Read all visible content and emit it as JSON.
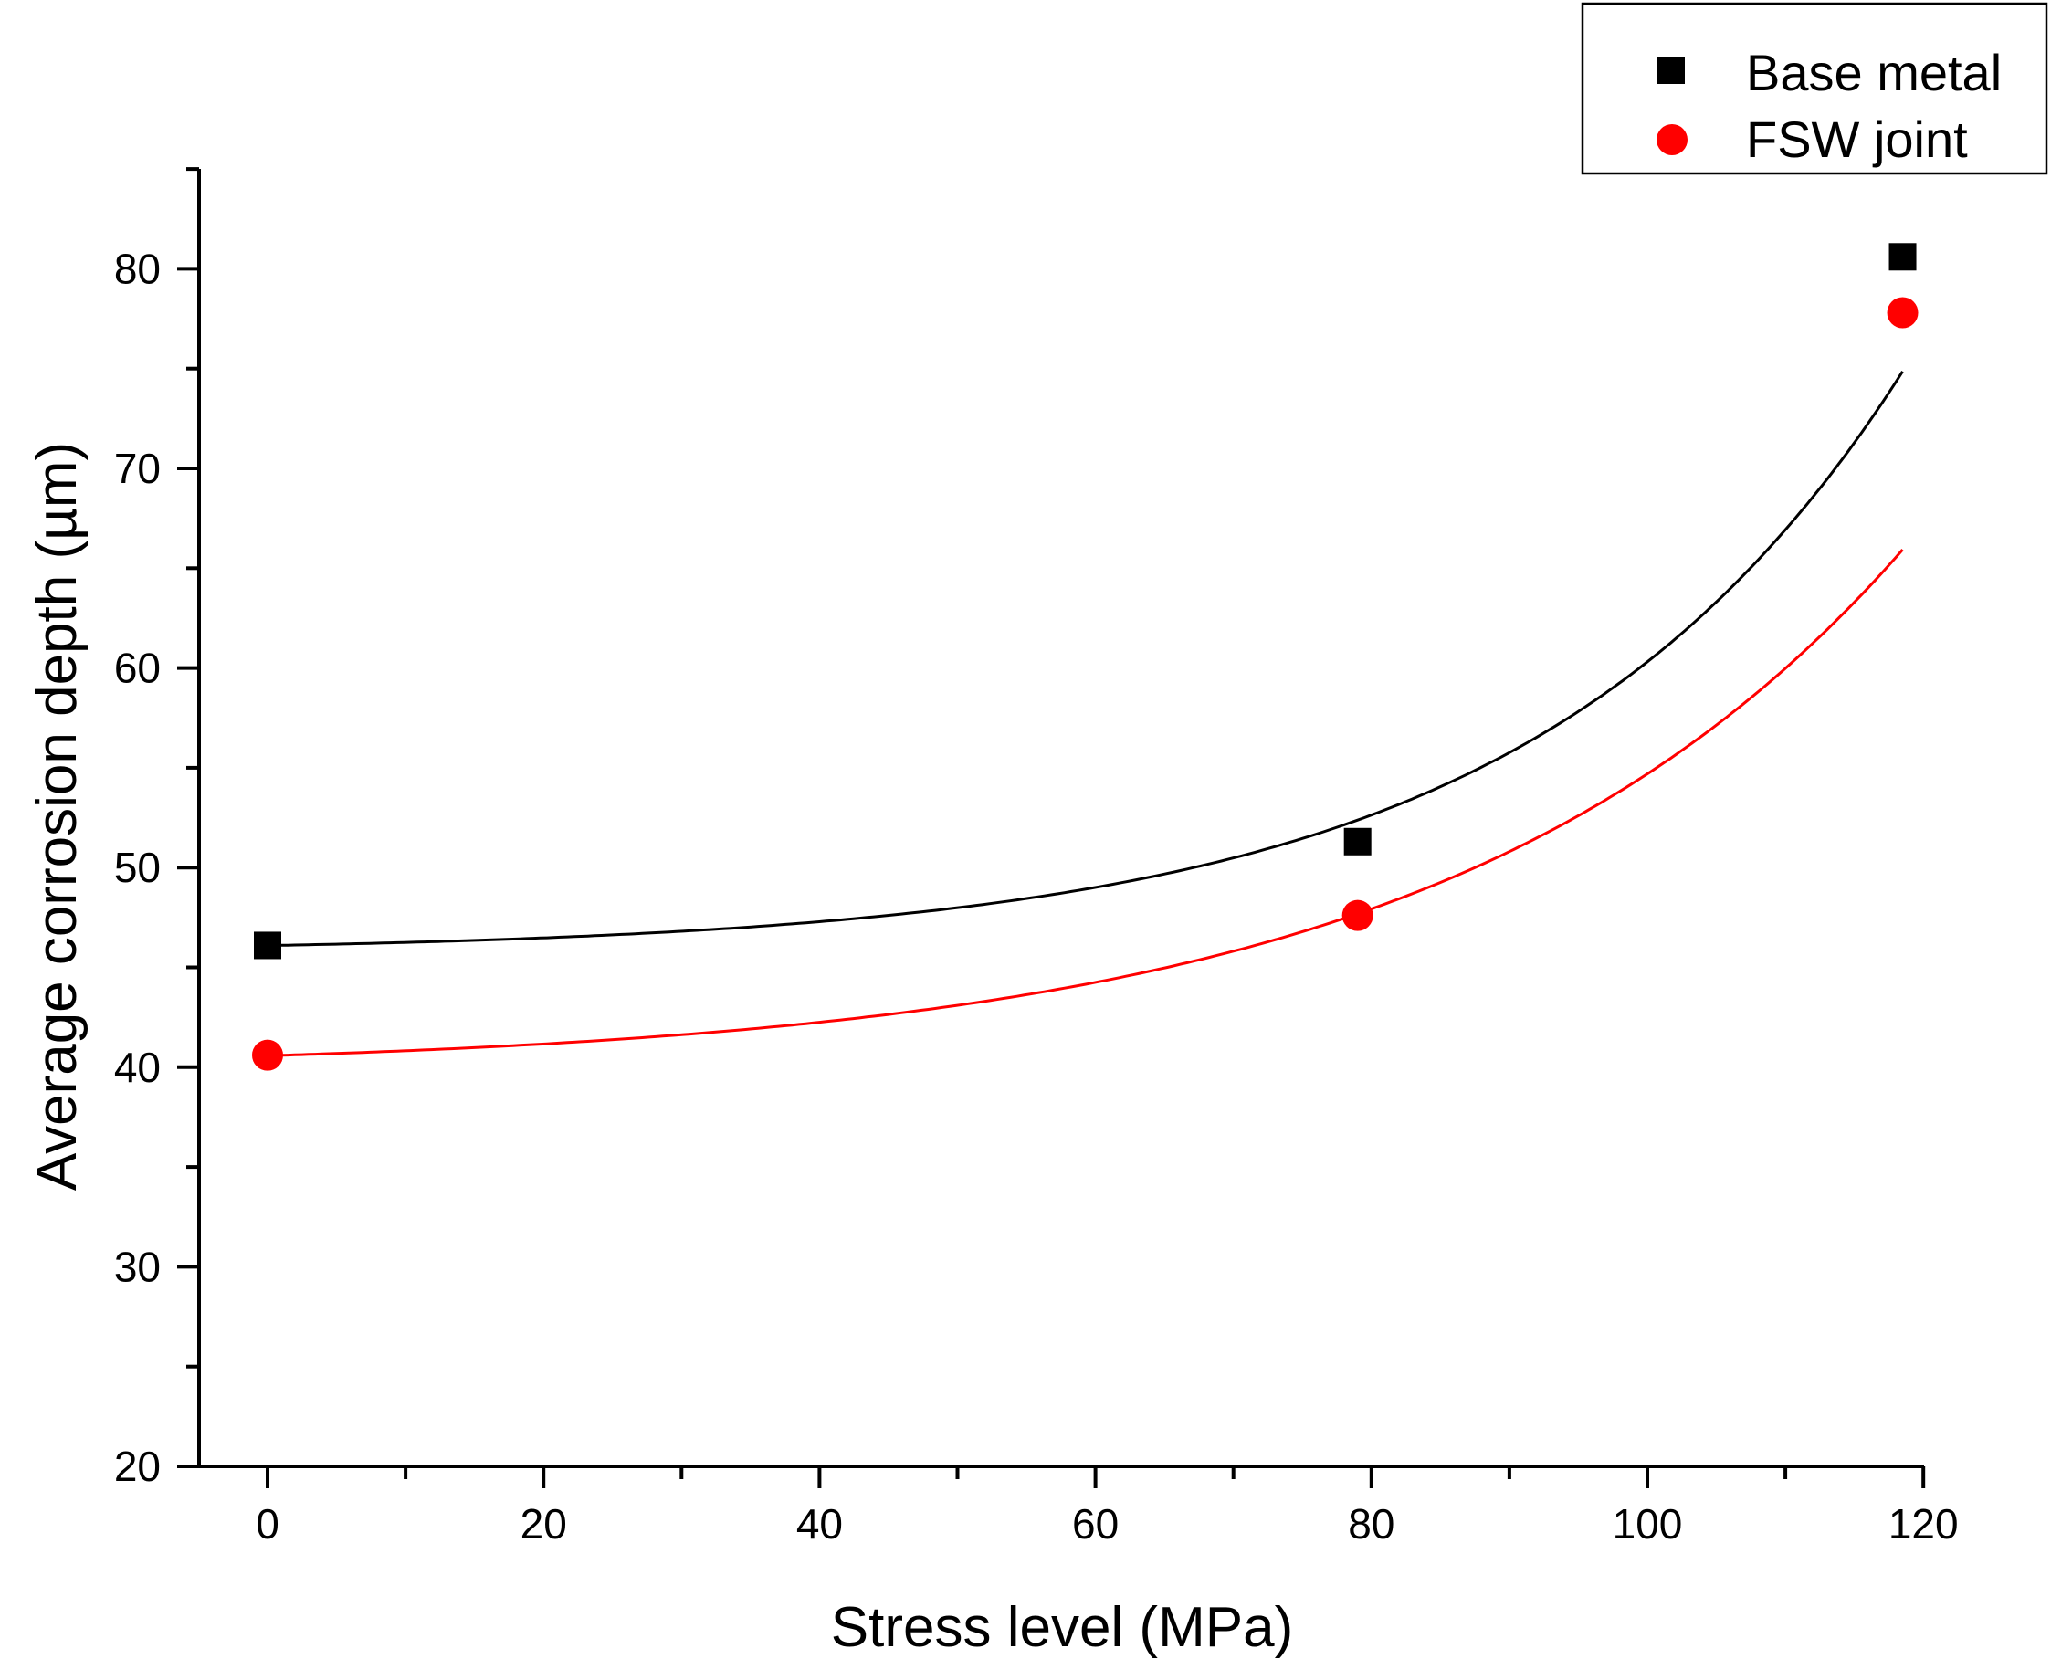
{
  "chart_data": {
    "type": "scatter",
    "title": "",
    "xlabel": "Stress level (MPa)",
    "ylabel": "Average corrosion depth (µm)",
    "xlim": [
      -7.5,
      120
    ],
    "ylim": [
      20,
      85
    ],
    "xticks": [
      0,
      20,
      40,
      60,
      80,
      100,
      120
    ],
    "yticks": [
      20,
      30,
      40,
      50,
      60,
      70,
      80
    ],
    "xtick_labels": [
      "0",
      "20",
      "40",
      "60",
      "80",
      "100",
      "120"
    ],
    "ytick_labels": [
      "20",
      "30",
      "40",
      "50",
      "60",
      "70",
      "80"
    ],
    "legend_position": "top-right",
    "series": [
      {
        "name": "Base metal",
        "marker": "square",
        "color": "#000000",
        "x": [
          0,
          79,
          118.5
        ],
        "y": [
          46.1,
          51.3,
          80.6
        ],
        "fit": {
          "type": "exponential",
          "y0": 45.75,
          "A": 0.344,
          "t": 26.7
        }
      },
      {
        "name": "FSW joint",
        "marker": "circle",
        "color": "#ff0000",
        "x": [
          0,
          79,
          118.5
        ],
        "y": [
          40.6,
          47.6,
          77.8
        ],
        "fit": {
          "type": "exponential",
          "y0": 39.87,
          "A": 0.703,
          "t": 32.8
        }
      }
    ]
  }
}
